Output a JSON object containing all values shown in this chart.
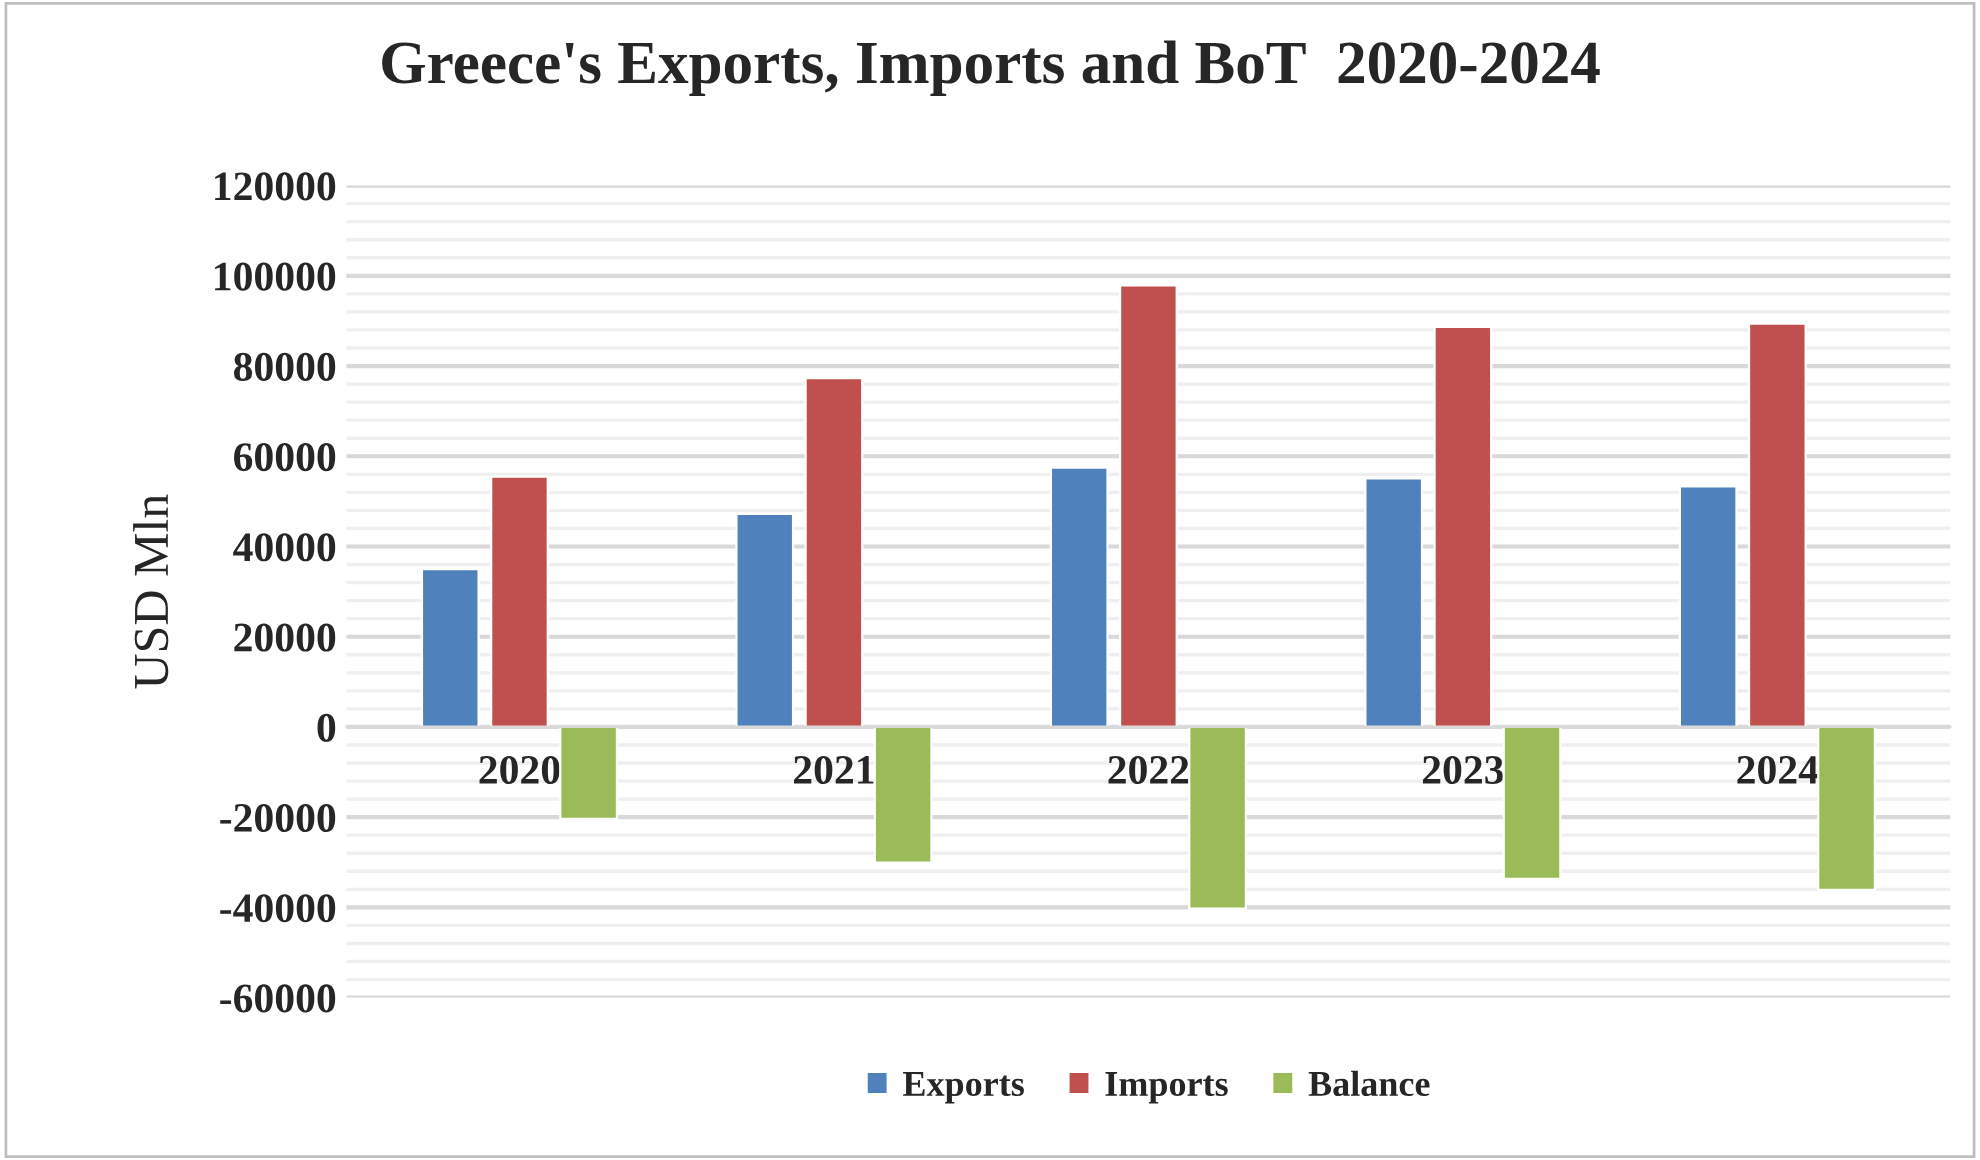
{
  "chart_data": {
    "type": "bar",
    "title": "Greece's Exports, Imports and BoT  2020-2024",
    "ylabel": "USD Mln",
    "categories": [
      "2020",
      "2021",
      "2022",
      "2023",
      "2024"
    ],
    "series": [
      {
        "name": "Exports",
        "color": "#4f81bd",
        "values": [
          35000,
          47200,
          57500,
          55100,
          53300
        ]
      },
      {
        "name": "Imports",
        "color": "#c0504d",
        "values": [
          55500,
          77300,
          97900,
          88700,
          89400
        ]
      },
      {
        "name": "Balance",
        "color": "#9bbb59",
        "values": [
          -20400,
          -30100,
          -40300,
          -33700,
          -36100
        ]
      }
    ],
    "ylim": [
      -60000,
      120000
    ],
    "yticks": [
      -60000,
      -40000,
      -20000,
      0,
      20000,
      40000,
      60000,
      80000,
      100000,
      120000
    ],
    "grid": "y",
    "legend": "bottom"
  }
}
